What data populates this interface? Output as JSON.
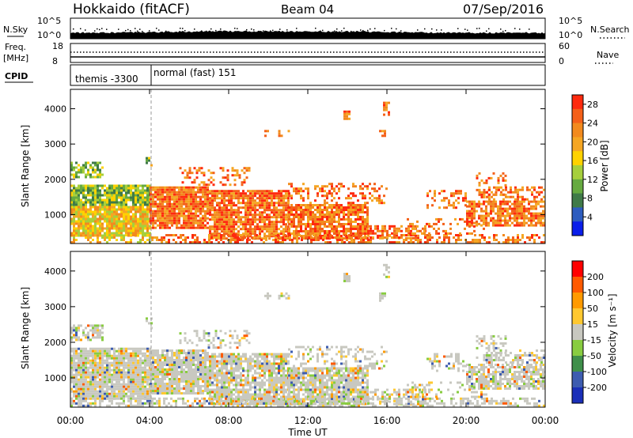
{
  "header": {
    "title": "Hokkaido (fitACF)",
    "beam": "Beam 04",
    "date": "07/Sep/2016"
  },
  "sky_panel": {
    "label": "N.Sky",
    "left_ticks": [
      "10^5",
      "10^0"
    ],
    "right_ticks": [
      "10^5",
      "10^0"
    ],
    "right_label": "N.Search"
  },
  "freq_panel": {
    "label_line1": "Freq.",
    "label_line2": "[MHz]",
    "left_ticks": [
      "18",
      "8"
    ],
    "right_ticks": [
      "60",
      "0"
    ],
    "right_label": "Nave"
  },
  "cpid_panel": {
    "label": "CPID",
    "modes": [
      {
        "text": "themis -3300",
        "start_hour": 0,
        "end_hour": 4
      },
      {
        "text": "normal (fast) 151",
        "start_hour": 4,
        "end_hour": 24
      }
    ]
  },
  "chart_data": [
    {
      "type": "heatmap",
      "ylabel": "Slant Range [km]",
      "xlabel": "",
      "yticks": [
        "1000",
        "2000",
        "3000",
        "4000"
      ],
      "ylim": [
        180,
        4550
      ],
      "xlim_hours": [
        0,
        24
      ],
      "colorbar": {
        "label": "Power [dB]",
        "ticks": [
          "4",
          "8",
          "12",
          "16",
          "20",
          "24",
          "28"
        ],
        "range": [
          0,
          30
        ]
      },
      "colors": [
        "#0a1eea",
        "#2d5cbf",
        "#3f7a48",
        "#66aa40",
        "#a6cf3c",
        "#ffd200",
        "#f5a623",
        "#f28a1e",
        "#f46019",
        "#ff2a0e"
      ]
    },
    {
      "type": "heatmap",
      "ylabel": "Slant Range [km]",
      "xlabel": "Time UT",
      "yticks": [
        "1000",
        "2000",
        "3000",
        "4000"
      ],
      "ylim": [
        180,
        4550
      ],
      "xticks": [
        "00:00",
        "04:00",
        "08:00",
        "12:00",
        "16:00",
        "20:00",
        "00:00"
      ],
      "xlim_hours": [
        0,
        24
      ],
      "colorbar": {
        "label": "Velocity [m s⁻¹]",
        "ticks": [
          "200",
          "100",
          "50",
          "15",
          "-15",
          "-50",
          "-100",
          "-200"
        ],
        "range": [
          -250,
          250
        ]
      },
      "colors": [
        "#ff0000",
        "#ff5a00",
        "#ff9a00",
        "#ffc830",
        "#c8c8c0",
        "#88cc40",
        "#3f8f4a",
        "#3d5cb0",
        "#1a2fb8"
      ]
    }
  ]
}
